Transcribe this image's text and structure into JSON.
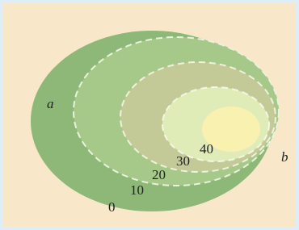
{
  "regions": {
    "outer": "a",
    "inner": "b"
  },
  "contours": [
    "0",
    "10",
    "20",
    "30",
    "40"
  ]
}
